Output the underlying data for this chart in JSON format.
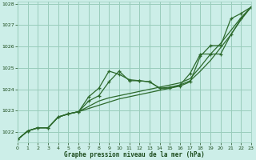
{
  "xlabel": "Graphe pression niveau de la mer (hPa)",
  "bg_color": "#cceee8",
  "grid_color": "#99ccbb",
  "line_color": "#2d6a2d",
  "text_color": "#1a4a1a",
  "ylim": [
    1021.5,
    1028.1
  ],
  "xlim": [
    0,
    23
  ],
  "yticks": [
    1022,
    1023,
    1024,
    1025,
    1026,
    1027,
    1028
  ],
  "xticks": [
    0,
    1,
    2,
    3,
    4,
    5,
    6,
    7,
    8,
    9,
    10,
    11,
    12,
    13,
    14,
    15,
    16,
    17,
    18,
    19,
    20,
    21,
    22,
    23
  ],
  "hours": [
    0,
    1,
    2,
    3,
    4,
    5,
    6,
    7,
    8,
    9,
    10,
    11,
    12,
    13,
    14,
    15,
    16,
    17,
    18,
    19,
    20,
    21,
    22,
    23
  ],
  "series": [
    {
      "y": [
        1021.65,
        1022.05,
        1022.2,
        1022.2,
        1022.7,
        1022.85,
        1022.95,
        1023.65,
        1024.05,
        1024.85,
        1024.7,
        1024.45,
        1024.4,
        1024.35,
        1024.05,
        1024.05,
        1024.15,
        1024.35,
        1025.55,
        1026.05,
        1026.05,
        1027.3,
        1027.55,
        1027.85
      ],
      "marker": true,
      "lw": 0.9
    },
    {
      "y": [
        1021.65,
        1022.05,
        1022.2,
        1022.2,
        1022.7,
        1022.85,
        1022.95,
        1023.1,
        1023.25,
        1023.4,
        1023.55,
        1023.65,
        1023.75,
        1023.85,
        1023.95,
        1024.05,
        1024.2,
        1024.4,
        1024.85,
        1025.35,
        1025.95,
        1026.55,
        1027.25,
        1027.85
      ],
      "marker": false,
      "lw": 0.9
    },
    {
      "y": [
        1021.65,
        1022.05,
        1022.2,
        1022.2,
        1022.7,
        1022.85,
        1022.95,
        1023.2,
        1023.45,
        1023.6,
        1023.7,
        1023.8,
        1023.9,
        1024.0,
        1024.1,
        1024.2,
        1024.3,
        1024.5,
        1025.05,
        1025.65,
        1026.15,
        1026.75,
        1027.35,
        1027.85
      ],
      "marker": false,
      "lw": 0.9
    },
    {
      "y": [
        1021.65,
        1022.05,
        1022.2,
        1022.2,
        1022.7,
        1022.85,
        1022.95,
        1023.45,
        1023.7,
        1024.35,
        1024.85,
        1024.4,
        1024.4,
        1024.35,
        1024.05,
        1024.1,
        1024.2,
        1024.75,
        1025.65,
        1025.65,
        1025.65,
        1026.55,
        1027.3,
        1027.85
      ],
      "marker": true,
      "lw": 0.9
    }
  ]
}
